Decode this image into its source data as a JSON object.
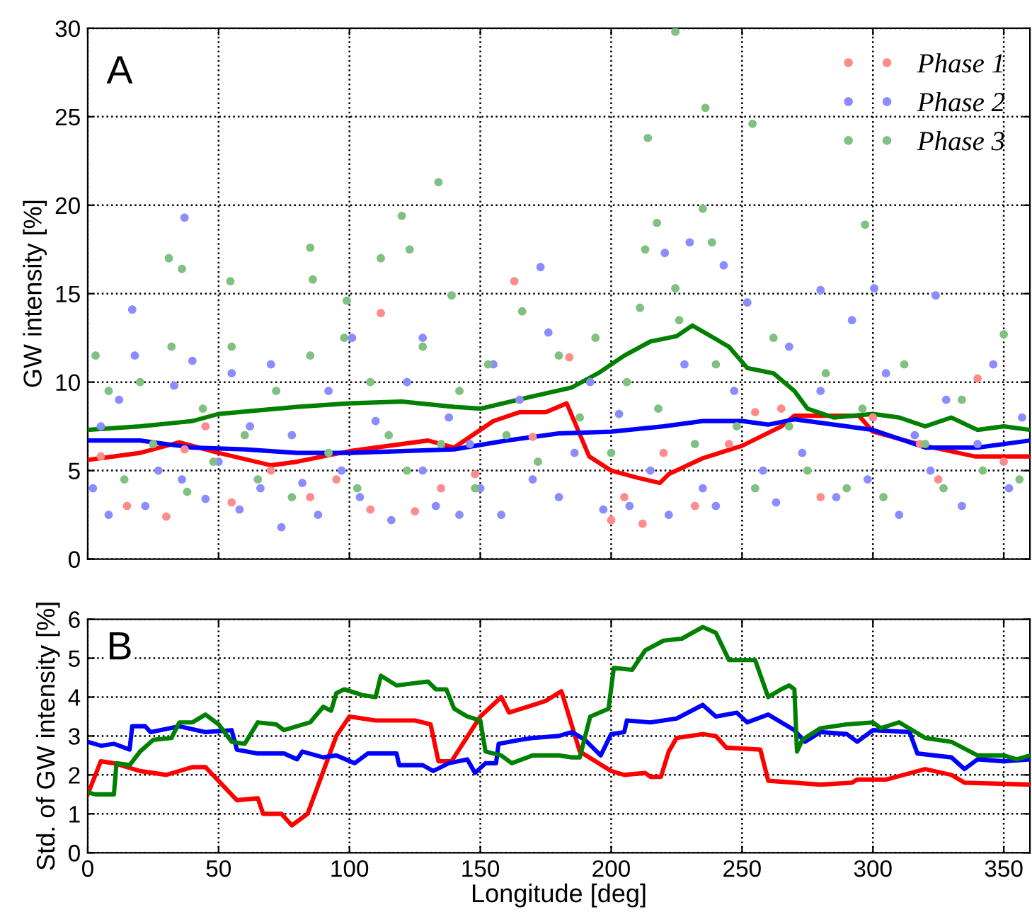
{
  "chart_data": [
    {
      "type": "scatter",
      "ylabel": "GW intensity [%]",
      "annotations": [
        "A"
      ],
      "xlim": [
        0,
        360
      ],
      "ylim": [
        0,
        30
      ],
      "yticks": [
        0,
        5,
        10,
        15,
        20,
        25,
        30
      ],
      "tick_labels": "y",
      "grid": true,
      "legend": "top right",
      "series": [
        {
          "name": "Phase 1",
          "type": "scatter",
          "marker": "circle",
          "color": "#ff8c8c",
          "x": [
            5,
            15,
            30,
            37,
            45,
            55,
            70,
            85,
            95,
            108,
            112,
            125,
            135,
            148,
            163,
            170,
            184,
            200,
            205,
            212,
            220,
            232,
            245,
            255,
            265,
            280,
            300,
            318,
            325,
            340,
            350
          ],
          "values": [
            5.8,
            3.0,
            2.4,
            6.2,
            7.5,
            3.2,
            5.0,
            3.5,
            4.5,
            2.8,
            13.9,
            2.7,
            4.0,
            4.8,
            15.7,
            6.9,
            11.4,
            2.2,
            3.5,
            2.0,
            6.0,
            3.0,
            6.5,
            8.3,
            8.5,
            3.5,
            8.0,
            6.5,
            4.5,
            10.2,
            5.5
          ]
        },
        {
          "name": "Phase 2",
          "type": "scatter",
          "marker": "circle",
          "color": "#8c8cff",
          "x": [
            2,
            5,
            8,
            12,
            17,
            18,
            22,
            27,
            33,
            36,
            37,
            40,
            45,
            50,
            55,
            58,
            62,
            66,
            70,
            74,
            78,
            82,
            88,
            92,
            97,
            101,
            104,
            110,
            116,
            122,
            128,
            128,
            133,
            138,
            142,
            146,
            150,
            155,
            158,
            165,
            170,
            173,
            176,
            180,
            186,
            192,
            197,
            203,
            207,
            215,
            220.5,
            222,
            228,
            230,
            235,
            240,
            243,
            247,
            252,
            258,
            263,
            268,
            273,
            280,
            280,
            286,
            292,
            298,
            300.5,
            305,
            310,
            316,
            322,
            324,
            328,
            334,
            340,
            346,
            352,
            357
          ],
          "values": [
            4.0,
            7.5,
            2.5,
            9.0,
            14.1,
            11.5,
            3.0,
            5.0,
            9.8,
            4.5,
            19.3,
            11.2,
            3.4,
            5.5,
            10.5,
            2.8,
            7.5,
            4.0,
            11.0,
            1.8,
            7.0,
            4.3,
            2.5,
            9.5,
            5.0,
            12.5,
            3.5,
            7.8,
            2.2,
            10.0,
            5.0,
            12.5,
            3.0,
            8.0,
            2.5,
            6.5,
            4.0,
            11.0,
            2.5,
            9.0,
            4.5,
            16.5,
            12.8,
            3.5,
            6.0,
            10.0,
            2.8,
            8.2,
            3.0,
            5.0,
            17.3,
            2.5,
            11.0,
            17.9,
            4.0,
            3.0,
            16.6,
            9.5,
            14.5,
            5.0,
            3.2,
            12.0,
            6.0,
            9.5,
            15.2,
            3.5,
            13.5,
            4.5,
            15.3,
            10.5,
            2.5,
            7.0,
            5.0,
            14.9,
            9.0,
            3.0,
            6.5,
            11.0,
            4.0,
            8.0
          ]
        },
        {
          "name": "Phase 3",
          "type": "scatter",
          "marker": "circle",
          "color": "#80c080",
          "x": [
            3,
            8,
            14,
            20,
            25,
            31,
            32,
            36,
            38,
            44,
            48,
            54.5,
            55,
            60,
            65,
            72,
            78,
            85,
            85,
            86,
            92,
            98,
            99,
            103,
            108,
            112,
            115,
            120,
            122,
            123,
            128,
            134,
            135,
            139,
            142,
            148,
            153,
            160,
            166,
            172,
            180,
            188,
            194,
            200,
            206,
            211,
            213,
            214,
            217.5,
            218,
            224.5,
            224.5,
            226,
            232,
            235,
            236,
            238.5,
            240,
            248,
            254,
            255,
            262,
            268,
            275,
            282,
            290,
            296,
            297,
            304,
            312,
            320,
            327,
            334,
            342,
            350,
            356
          ],
          "values": [
            11.5,
            9.5,
            4.5,
            10.0,
            6.5,
            17.0,
            12.0,
            16.4,
            3.8,
            8.5,
            5.5,
            15.7,
            12.0,
            7.0,
            4.5,
            9.5,
            3.5,
            11.5,
            17.6,
            15.8,
            6.0,
            12.5,
            14.6,
            4.0,
            10.0,
            17.0,
            7.0,
            19.4,
            5.0,
            17.5,
            12.0,
            21.3,
            6.5,
            14.9,
            9.5,
            4.0,
            11.0,
            7.0,
            14.0,
            5.5,
            11.5,
            8.0,
            12.5,
            6.0,
            10.0,
            14.2,
            17.5,
            23.8,
            19.0,
            8.5,
            29.8,
            15.3,
            13.5,
            6.5,
            19.8,
            25.5,
            17.9,
            11.0,
            7.5,
            24.6,
            4.0,
            12.5,
            7.5,
            5.0,
            10.5,
            4.0,
            8.5,
            18.9,
            3.5,
            11.0,
            6.5,
            4.0,
            9.0,
            5.0,
            12.7,
            4.5
          ]
        },
        {
          "type": "line",
          "color": "#ff0000",
          "x": [
            0,
            20,
            35,
            50,
            70,
            80,
            100,
            120,
            130,
            140,
            155,
            165,
            175,
            183,
            191.6,
            200,
            210,
            218.6,
            222,
            235,
            250,
            265,
            270,
            294.7,
            300,
            320,
            339,
            360
          ],
          "values": [
            5.6,
            6.0,
            6.6,
            6.0,
            5.3,
            5.5,
            6.1,
            6.5,
            6.7,
            6.3,
            7.8,
            8.3,
            8.3,
            8.8,
            5.8,
            5.0,
            4.6,
            4.3,
            4.8,
            5.7,
            6.4,
            7.5,
            8.1,
            8.1,
            7.2,
            6.4,
            5.8,
            5.8
          ]
        },
        {
          "type": "line",
          "color": "#0000ff",
          "x": [
            0,
            20,
            40,
            60,
            80,
            100,
            120,
            140,
            160,
            180,
            200,
            220,
            235,
            250,
            260,
            270,
            280,
            300,
            320,
            340,
            360
          ],
          "values": [
            6.7,
            6.7,
            6.3,
            6.2,
            6.0,
            6.0,
            6.1,
            6.2,
            6.7,
            7.1,
            7.2,
            7.5,
            7.8,
            7.8,
            7.6,
            7.9,
            7.7,
            7.3,
            6.3,
            6.3,
            6.7
          ]
        },
        {
          "type": "line",
          "color": "#008000",
          "x": [
            0,
            20,
            40,
            50,
            80,
            100,
            120,
            140,
            150,
            170,
            185,
            195,
            205,
            215,
            225,
            231,
            245,
            252,
            262,
            270,
            275,
            285,
            300,
            310,
            320,
            330,
            340,
            350,
            360
          ],
          "values": [
            7.3,
            7.5,
            7.8,
            8.2,
            8.6,
            8.8,
            8.9,
            8.6,
            8.5,
            9.2,
            9.7,
            10.5,
            11.5,
            12.3,
            12.6,
            13.2,
            12.0,
            10.8,
            10.5,
            9.5,
            8.5,
            8.0,
            8.2,
            8.0,
            7.5,
            8.0,
            7.3,
            7.5,
            7.3
          ]
        }
      ]
    },
    {
      "type": "line",
      "xlabel": "Longitude [deg]",
      "ylabel": "Std. of GW intensity [%]",
      "annotations": [
        "B"
      ],
      "xlim": [
        0,
        360
      ],
      "ylim": [
        0,
        6
      ],
      "xticks": [
        0,
        50,
        100,
        150,
        200,
        250,
        300,
        350
      ],
      "yticks": [
        0,
        1,
        2,
        3,
        4,
        5,
        6
      ],
      "grid": true,
      "series": [
        {
          "color": "#ff0000",
          "x": [
            0,
            5,
            10,
            20,
            30,
            40,
            45,
            57,
            65,
            67,
            74,
            78,
            84,
            95,
            100,
            110,
            125,
            131,
            134,
            139,
            150,
            158,
            161,
            175,
            181,
            188,
            200,
            205,
            213,
            215,
            219,
            222,
            225,
            235,
            240,
            244,
            257,
            260,
            270,
            280,
            292,
            294,
            305,
            320,
            330,
            335,
            360
          ],
          "values": [
            1.5,
            2.35,
            2.3,
            2.1,
            2.0,
            2.2,
            2.2,
            1.35,
            1.4,
            1.0,
            1.0,
            0.7,
            1.0,
            3.0,
            3.5,
            3.4,
            3.4,
            3.3,
            2.35,
            2.35,
            3.5,
            4.0,
            3.6,
            3.9,
            4.15,
            2.6,
            2.1,
            2.0,
            2.05,
            1.95,
            1.95,
            2.6,
            2.95,
            3.05,
            3.0,
            2.7,
            2.65,
            1.85,
            1.8,
            1.75,
            1.8,
            1.88,
            1.88,
            2.15,
            2.0,
            1.8,
            1.75
          ]
        },
        {
          "color": "#0000ff",
          "x": [
            0,
            5,
            10,
            16,
            17,
            22,
            24,
            35,
            45,
            55,
            57,
            65,
            75,
            80,
            82,
            90,
            95,
            102,
            107,
            118,
            119,
            128,
            132,
            138,
            145,
            148,
            152,
            156,
            157,
            165,
            170,
            180,
            185,
            190,
            196,
            200,
            205,
            206,
            215,
            225,
            235,
            240,
            248,
            252,
            260,
            270,
            274,
            280,
            290,
            294,
            300,
            314,
            317,
            330,
            335,
            340,
            350,
            360
          ],
          "values": [
            2.85,
            2.75,
            2.8,
            2.65,
            3.25,
            3.25,
            3.1,
            3.25,
            3.1,
            3.15,
            2.65,
            2.55,
            2.55,
            2.4,
            2.6,
            2.45,
            2.5,
            2.3,
            2.55,
            2.55,
            2.25,
            2.25,
            2.1,
            2.3,
            2.4,
            2.05,
            2.3,
            2.3,
            2.8,
            2.9,
            2.95,
            3.0,
            3.1,
            2.9,
            2.5,
            3.05,
            3.1,
            3.4,
            3.35,
            3.45,
            3.8,
            3.5,
            3.6,
            3.35,
            3.55,
            3.15,
            2.85,
            3.1,
            3.05,
            2.85,
            3.15,
            3.1,
            2.55,
            2.45,
            2.15,
            2.4,
            2.35,
            2.4
          ]
        },
        {
          "color": "#008000",
          "x": [
            0,
            3,
            10,
            11,
            16,
            20,
            25,
            32,
            35,
            40,
            45,
            50,
            55,
            60,
            65,
            72,
            75,
            85,
            90,
            93,
            95,
            98,
            105,
            110,
            112,
            118,
            130,
            133,
            137,
            140,
            145,
            150,
            152,
            158,
            162,
            170,
            180,
            185,
            188,
            192,
            199,
            201,
            208,
            213,
            220,
            227,
            235,
            240,
            245,
            255,
            260,
            265,
            268,
            270,
            271,
            273,
            280,
            290,
            300,
            303,
            310,
            320,
            330,
            340,
            350,
            355,
            360
          ],
          "values": [
            1.55,
            1.5,
            1.5,
            2.3,
            2.25,
            2.6,
            2.9,
            2.95,
            3.35,
            3.35,
            3.55,
            3.3,
            2.85,
            2.8,
            3.35,
            3.3,
            3.15,
            3.35,
            3.75,
            3.65,
            4.1,
            4.2,
            4.05,
            4.0,
            4.55,
            4.3,
            4.4,
            4.2,
            4.2,
            3.7,
            3.5,
            3.4,
            2.6,
            2.5,
            2.3,
            2.5,
            2.5,
            2.45,
            2.45,
            3.5,
            3.7,
            4.75,
            4.7,
            5.2,
            5.45,
            5.5,
            5.8,
            5.65,
            4.95,
            4.95,
            4.0,
            4.2,
            4.3,
            4.2,
            2.6,
            2.9,
            3.2,
            3.3,
            3.35,
            3.2,
            3.35,
            2.95,
            2.85,
            2.5,
            2.5,
            2.4,
            2.5
          ]
        }
      ]
    }
  ]
}
